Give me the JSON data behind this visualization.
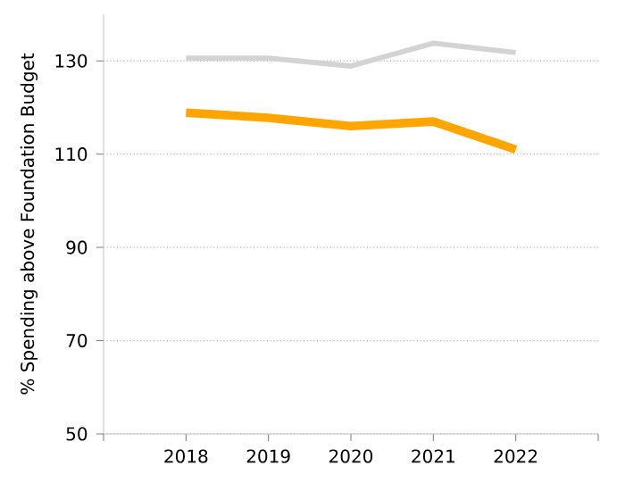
{
  "chart_data": {
    "type": "line",
    "ylabel": "% Spending above Foundation Budget",
    "x": [
      2018,
      2019,
      2020,
      2021,
      2022
    ],
    "series": [
      {
        "color": "#d3d3d3",
        "values": [
          130.6,
          130.6,
          128.9,
          133.8,
          131.8
        ]
      },
      {
        "color": "#ffa500",
        "values": [
          118.9,
          117.8,
          116.0,
          117.0,
          111.0
        ]
      }
    ],
    "xlim": [
      2017,
      2023
    ],
    "xticks": [
      {
        "value": 2017,
        "label": null
      },
      2018,
      2019,
      2020,
      2021,
      2022,
      {
        "value": 2023,
        "label": null
      }
    ],
    "ylim": [
      50,
      140
    ],
    "yticks": [
      50,
      70,
      90,
      110,
      130
    ],
    "grid": "y",
    "legend": false,
    "marker": "none",
    "line_style": "solid"
  }
}
